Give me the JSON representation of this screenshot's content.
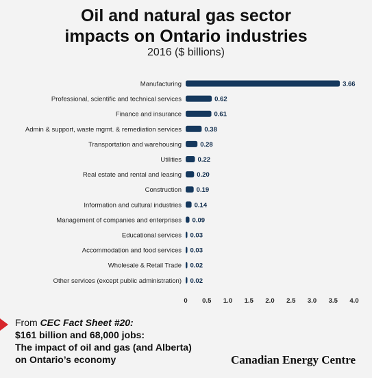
{
  "title_line1": "Oil and natural gas sector",
  "title_line2": "impacts on Ontario industries",
  "subtitle": "2016 ($ billions)",
  "source": {
    "lead": "From ",
    "ref": "CEC Fact Sheet #20:",
    "line2": "$161 billion and 68,000 jobs:",
    "line3": "The impact of oil and gas (and Alberta)",
    "line4": "on Ontario’s economy"
  },
  "brand": "Canadian Energy Centre",
  "colors": {
    "bar": "#15385d",
    "accent": "#d7262c"
  },
  "chart_data": {
    "type": "bar",
    "orientation": "horizontal",
    "categories": [
      "Manufacturing",
      "Professional, scientific and technical services",
      "Finance and insurance",
      "Admin & support, waste mgmt. & remediation services",
      "Transportation and warehousing",
      "Utilities",
      "Real estate and rental and leasing",
      "Construction",
      "Information and cultural industries",
      "Management of companies and enterprises",
      "Educational services",
      "Accommodation and food services",
      "Wholesale & Retail Trade",
      "Other services (except public administration)"
    ],
    "values": [
      3.66,
      0.62,
      0.61,
      0.38,
      0.28,
      0.22,
      0.2,
      0.19,
      0.14,
      0.09,
      0.03,
      0.03,
      0.02,
      0.02
    ],
    "value_labels": [
      "3.66",
      "0.62",
      "0.61",
      "0.38",
      "0.28",
      "0.22",
      "0.20",
      "0.19",
      "0.14",
      "0.09",
      "0.03",
      "0.03",
      "0.02",
      "0.02"
    ],
    "xticks": [
      "0",
      "0.5",
      "1.0",
      "1.5",
      "2.0",
      "2.5",
      "3.0",
      "3.5",
      "4.0"
    ],
    "xlim": [
      0,
      4.0
    ],
    "grid": false
  }
}
